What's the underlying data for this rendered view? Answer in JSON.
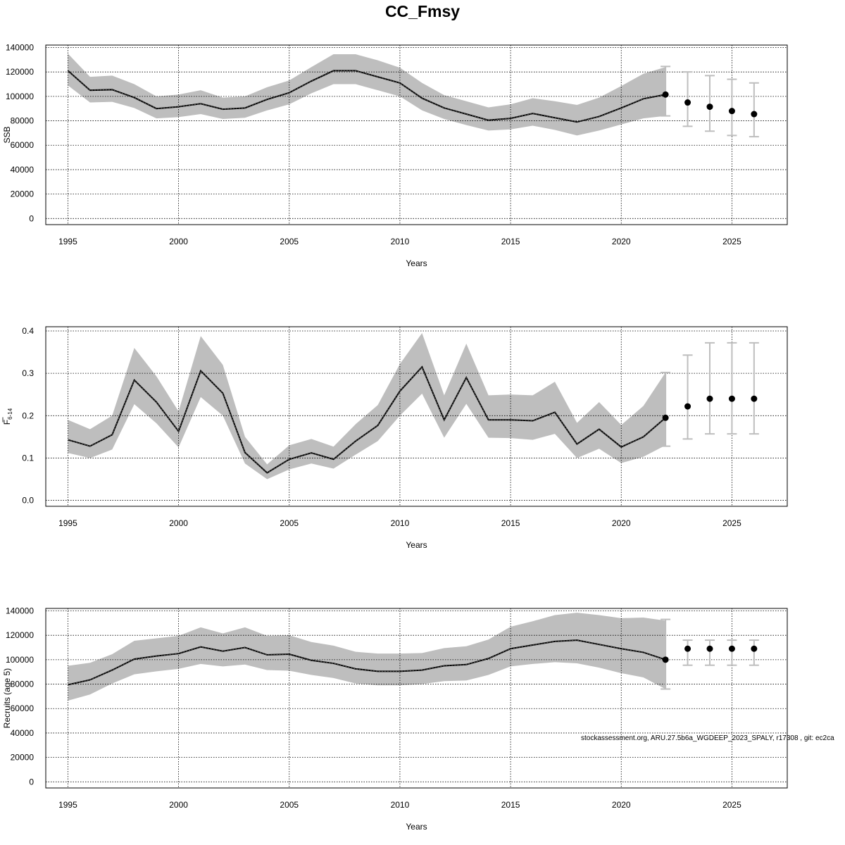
{
  "title": "CC_Fmsy",
  "footnote": "stockassessment.org, ARU.27.5b6a_WGDEEP_2023_SPALY, r17308 , git: ec2ca",
  "colors": {
    "band": "#bebebe",
    "line": "#000000",
    "errorbar": "#bebebe",
    "grid": "#000000",
    "point": "#000000"
  },
  "chart_data": [
    {
      "type": "line",
      "panel": "ssb",
      "ylabel": "SSB",
      "xlabel": "Years",
      "xlim": [
        1994,
        2027.5
      ],
      "ylim": [
        -5000,
        142000
      ],
      "xticks": [
        1995,
        2000,
        2005,
        2010,
        2015,
        2020,
        2025
      ],
      "xtick_labels": [
        "1995",
        "2000",
        "2005",
        "2010",
        "2015",
        "2020",
        "2025"
      ],
      "yticks": [
        0,
        20000,
        40000,
        60000,
        80000,
        100000,
        120000,
        140000
      ],
      "ytick_labels": [
        "0",
        "20000",
        "40000",
        "60000",
        "80000",
        "100000",
        "120000",
        "140000"
      ],
      "grid": true,
      "years": [
        1995,
        1996,
        1997,
        1998,
        1999,
        2000,
        2001,
        2002,
        2003,
        2004,
        2005,
        2006,
        2007,
        2008,
        2009,
        2010,
        2011,
        2012,
        2013,
        2014,
        2015,
        2016,
        2017,
        2018,
        2019,
        2020,
        2021,
        2022
      ],
      "estimate": [
        121000,
        105000,
        105500,
        99000,
        90000,
        91500,
        94000,
        89500,
        90500,
        97500,
        103000,
        112500,
        121000,
        121000,
        116000,
        111000,
        98500,
        90500,
        85500,
        80500,
        82000,
        86000,
        82500,
        79000,
        83500,
        90500,
        98000,
        101500
      ],
      "lower": [
        109000,
        95000,
        95500,
        90500,
        82000,
        83000,
        85500,
        81500,
        82500,
        88500,
        93500,
        102500,
        110000,
        110000,
        105000,
        100000,
        88500,
        81500,
        76500,
        72000,
        73000,
        76000,
        72500,
        68000,
        72000,
        77000,
        82000,
        84000
      ],
      "upper": [
        135000,
        116000,
        117000,
        110000,
        100000,
        101500,
        105000,
        99000,
        100000,
        107500,
        113000,
        124000,
        134500,
        134500,
        129500,
        123500,
        111000,
        101000,
        96000,
        91000,
        93500,
        98500,
        96000,
        93000,
        99000,
        108500,
        118500,
        124000
      ],
      "forecast": {
        "years": [
          2022,
          2023,
          2024,
          2025,
          2026
        ],
        "median": [
          101500,
          95000,
          91500,
          88000,
          85500
        ],
        "lower": [
          84000,
          75500,
          71500,
          68000,
          67000
        ],
        "upper": [
          124500,
          120000,
          117000,
          114000,
          111000
        ]
      }
    },
    {
      "type": "line",
      "panel": "fbar",
      "ylabel": "F",
      "ylabel_sub": "6-14",
      "xlabel": "Years",
      "xlim": [
        1994,
        2027.5
      ],
      "ylim": [
        -0.014,
        0.41
      ],
      "xticks": [
        1995,
        2000,
        2005,
        2010,
        2015,
        2020,
        2025
      ],
      "xtick_labels": [
        "1995",
        "2000",
        "2005",
        "2010",
        "2015",
        "2020",
        "2025"
      ],
      "yticks": [
        0.0,
        0.1,
        0.2,
        0.3,
        0.4
      ],
      "ytick_labels": [
        "0.0",
        "0.1",
        "0.2",
        "0.3",
        "0.4"
      ],
      "grid": true,
      "years": [
        1995,
        1996,
        1997,
        1998,
        1999,
        2000,
        2001,
        2002,
        2003,
        2004,
        2005,
        2006,
        2007,
        2008,
        2009,
        2010,
        2011,
        2012,
        2013,
        2014,
        2015,
        2016,
        2017,
        2018,
        2019,
        2020,
        2021,
        2022
      ],
      "estimate": [
        0.143,
        0.128,
        0.155,
        0.284,
        0.232,
        0.163,
        0.306,
        0.253,
        0.113,
        0.065,
        0.097,
        0.112,
        0.097,
        0.14,
        0.177,
        0.258,
        0.315,
        0.19,
        0.29,
        0.19,
        0.19,
        0.188,
        0.208,
        0.133,
        0.168,
        0.126,
        0.15,
        0.195
      ],
      "lower": [
        0.112,
        0.1,
        0.12,
        0.227,
        0.182,
        0.125,
        0.244,
        0.2,
        0.087,
        0.05,
        0.073,
        0.087,
        0.075,
        0.108,
        0.14,
        0.2,
        0.252,
        0.148,
        0.228,
        0.148,
        0.147,
        0.143,
        0.157,
        0.1,
        0.122,
        0.088,
        0.103,
        0.13
      ],
      "upper": [
        0.19,
        0.168,
        0.2,
        0.36,
        0.293,
        0.21,
        0.388,
        0.32,
        0.15,
        0.085,
        0.13,
        0.145,
        0.127,
        0.18,
        0.225,
        0.322,
        0.395,
        0.248,
        0.37,
        0.248,
        0.25,
        0.248,
        0.28,
        0.183,
        0.232,
        0.178,
        0.223,
        0.302
      ],
      "forecast": {
        "years": [
          2022,
          2023,
          2024,
          2025,
          2026
        ],
        "median": [
          0.195,
          0.222,
          0.24,
          0.24,
          0.24
        ],
        "lower": [
          0.128,
          0.145,
          0.157,
          0.157,
          0.157
        ],
        "upper": [
          0.302,
          0.343,
          0.372,
          0.372,
          0.372
        ]
      }
    },
    {
      "type": "line",
      "panel": "recruits",
      "ylabel": "Recruits (age 5)",
      "xlabel": "Years",
      "xlim": [
        1994,
        2027.5
      ],
      "ylim": [
        -5000,
        142000
      ],
      "xticks": [
        1995,
        2000,
        2005,
        2010,
        2015,
        2020,
        2025
      ],
      "xtick_labels": [
        "1995",
        "2000",
        "2005",
        "2010",
        "2015",
        "2020",
        "2025"
      ],
      "yticks": [
        0,
        20000,
        40000,
        60000,
        80000,
        100000,
        120000,
        140000
      ],
      "ytick_labels": [
        "0",
        "20000",
        "40000",
        "60000",
        "80000",
        "100000",
        "120000",
        "140000"
      ],
      "grid": true,
      "years": [
        1995,
        1996,
        1997,
        1998,
        1999,
        2000,
        2001,
        2002,
        2003,
        2004,
        2005,
        2006,
        2007,
        2008,
        2009,
        2010,
        2011,
        2012,
        2013,
        2014,
        2015,
        2016,
        2017,
        2018,
        2019,
        2020,
        2021,
        2022
      ],
      "estimate": [
        79500,
        83500,
        91500,
        100500,
        103000,
        105000,
        110500,
        107000,
        110000,
        104000,
        104500,
        99500,
        97000,
        92500,
        90500,
        90500,
        91500,
        95000,
        96000,
        101000,
        109000,
        112000,
        115000,
        116000,
        112500,
        109000,
        106000,
        100000
      ],
      "lower": [
        66500,
        71500,
        80500,
        88000,
        90500,
        92500,
        96500,
        94500,
        96000,
        91500,
        91000,
        87500,
        85000,
        80500,
        79000,
        79000,
        80000,
        82500,
        83000,
        87500,
        94500,
        96500,
        98000,
        97000,
        93500,
        89000,
        85500,
        76000
      ],
      "upper": [
        95000,
        97500,
        104500,
        115500,
        117500,
        119500,
        126500,
        121500,
        126500,
        119500,
        120000,
        114500,
        111500,
        106500,
        105000,
        105000,
        105500,
        109500,
        111000,
        116500,
        127000,
        131500,
        136500,
        138500,
        136500,
        134000,
        134500,
        132000
      ],
      "forecast": {
        "years": [
          2022,
          2023,
          2024,
          2025,
          2026
        ],
        "median": [
          100000,
          109000,
          109000,
          109000,
          109000
        ],
        "lower": [
          76000,
          95500,
          95500,
          95500,
          95500
        ],
        "upper": [
          133000,
          116000,
          116000,
          116000,
          116000
        ]
      }
    }
  ]
}
